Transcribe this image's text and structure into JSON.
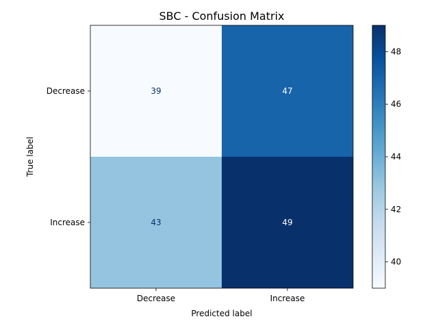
{
  "chart_data": {
    "type": "heatmap",
    "title": "SBC - Confusion Matrix",
    "xlabel": "Predicted label",
    "ylabel": "True label",
    "x_categories": [
      "Decrease",
      "Increase"
    ],
    "y_categories": [
      "Decrease",
      "Increase"
    ],
    "values": [
      [
        39,
        47
      ],
      [
        43,
        49
      ]
    ],
    "colormap": "Blues",
    "colorbar": {
      "range": [
        39,
        49
      ],
      "ticks": [
        40,
        42,
        44,
        46,
        48
      ],
      "tick_labels": [
        "40",
        "42",
        "44",
        "46",
        "48"
      ]
    }
  }
}
